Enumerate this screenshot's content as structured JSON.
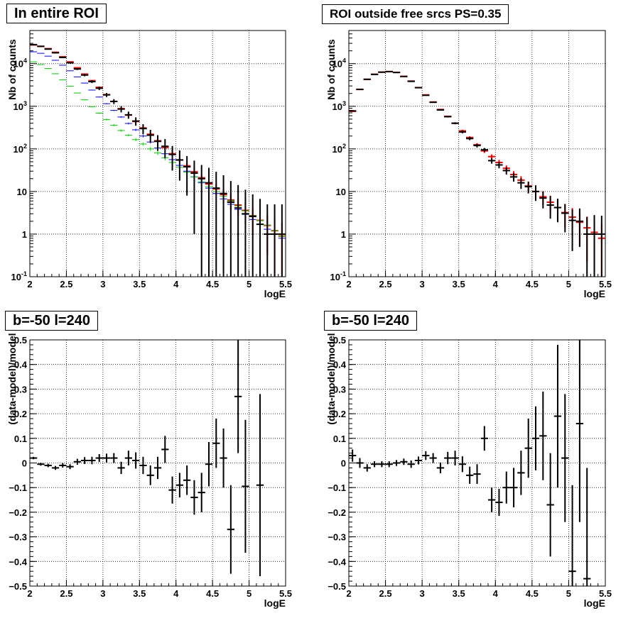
{
  "colors": {
    "data": "#000000",
    "model_total": "#ff0000",
    "model_blue": "#0000ff",
    "model_green": "#00cc00",
    "grid": "#000000"
  },
  "chart_data": [
    {
      "type": "scatter",
      "panel": "top-left",
      "title": "In entire ROI",
      "xlabel": "logE",
      "ylabel": "Nb of counts",
      "xlim": [
        2,
        5.5
      ],
      "ylim": [
        0.1,
        60000
      ],
      "yscale": "log",
      "grid": true,
      "xticks": [
        "2",
        "2.5",
        "3",
        "3.5",
        "4",
        "4.5",
        "5",
        "5.5"
      ],
      "yticks": [
        "10^-1",
        "1",
        "10",
        "10^2",
        "10^3",
        "10^4"
      ],
      "x": [
        2.05,
        2.15,
        2.25,
        2.35,
        2.45,
        2.55,
        2.65,
        2.75,
        2.85,
        2.95,
        3.05,
        3.15,
        3.25,
        3.35,
        3.45,
        3.55,
        3.65,
        3.75,
        3.85,
        3.95,
        4.05,
        4.15,
        4.25,
        4.35,
        4.45,
        4.55,
        4.65,
        4.75,
        4.85,
        4.95,
        5.05,
        5.15,
        5.25,
        5.35,
        5.45
      ],
      "series": [
        {
          "style": "data",
          "values": [
            28000,
            25500,
            22000,
            18000,
            14000,
            10500,
            7500,
            5400,
            3800,
            2650,
            1850,
            1300,
            860,
            630,
            450,
            300,
            210,
            150,
            115,
            74,
            55,
            38,
            27,
            20,
            16,
            12,
            9,
            5.6,
            4.1,
            3.0,
            2.6,
            1.7,
            1,
            1,
            1
          ]
        },
        {
          "style": "model_total",
          "values": [
            27500,
            25500,
            22500,
            18500,
            14500,
            11000,
            8000,
            5700,
            4000,
            2780,
            1880,
            1300,
            880,
            620,
            440,
            310,
            220,
            155,
            108,
            77,
            55,
            40,
            29,
            21,
            15,
            11.5,
            8.5,
            6.3,
            4.8,
            3.6,
            2.7,
            2.1,
            1.6,
            1.2,
            0.9
          ]
        },
        {
          "style": "model_blue",
          "values": [
            19000,
            17500,
            15000,
            12000,
            9200,
            6800,
            4900,
            3500,
            2400,
            1650,
            1150,
            800,
            560,
            395,
            280,
            200,
            145,
            105,
            77,
            56,
            41,
            30,
            22,
            16,
            12,
            9,
            6.7,
            5,
            3.8,
            2.9,
            2.2,
            1.7,
            1.3,
            1,
            0.8
          ]
        },
        {
          "style": "model_green",
          "values": [
            11000,
            9500,
            7700,
            5800,
            4200,
            2950,
            2050,
            1420,
            980,
            690,
            490,
            360,
            270,
            210,
            165,
            130,
            100,
            80,
            62,
            48,
            37,
            28.5,
            22,
            17,
            13,
            10,
            7.8,
            6,
            4.6,
            3.5,
            2.7,
            2.1,
            1.6,
            1.2,
            0.9
          ]
        }
      ],
      "data_err_hi": [
        800,
        760,
        700,
        640,
        560,
        480,
        410,
        350,
        290,
        240,
        200,
        170,
        140,
        120,
        100,
        80,
        70,
        60,
        55,
        43,
        37,
        30,
        26,
        22,
        20,
        17,
        15,
        12,
        10,
        8,
        6,
        5,
        4,
        4,
        4
      ],
      "data_err_lo": [
        800,
        760,
        700,
        640,
        560,
        480,
        410,
        350,
        290,
        240,
        200,
        170,
        140,
        120,
        100,
        80,
        70,
        60,
        55,
        43,
        37,
        30,
        26,
        22,
        19,
        15,
        12,
        9,
        6.5,
        5,
        4,
        2.5,
        1,
        1,
        1
      ]
    },
    {
      "type": "scatter",
      "panel": "top-right",
      "title": "ROI outside free srcs PS=0.35",
      "xlabel": "logE",
      "ylabel": "Nb of counts",
      "xlim": [
        2,
        5.5
      ],
      "ylim": [
        0.1,
        60000
      ],
      "yscale": "log",
      "grid": true,
      "xticks": [
        "2",
        "2.5",
        "3",
        "3.5",
        "4",
        "4.5",
        "5",
        "5.5"
      ],
      "yticks": [
        "10^-1",
        "1",
        "10",
        "10^2",
        "10^3",
        "10^4"
      ],
      "x": [
        2.05,
        2.15,
        2.25,
        2.35,
        2.45,
        2.55,
        2.65,
        2.75,
        2.85,
        2.95,
        3.05,
        3.15,
        3.25,
        3.35,
        3.45,
        3.55,
        3.65,
        3.75,
        3.85,
        3.95,
        4.05,
        4.15,
        4.25,
        4.35,
        4.45,
        4.55,
        4.65,
        4.75,
        4.85,
        4.95,
        5.05,
        5.15,
        5.25,
        5.35,
        5.45
      ],
      "series": [
        {
          "style": "data",
          "values": [
            780,
            2500,
            4300,
            5600,
            6300,
            6500,
            6200,
            5000,
            3850,
            2730,
            1810,
            1240,
            820,
            570,
            400,
            250,
            175,
            120,
            95,
            53,
            42,
            31,
            22,
            16,
            13,
            10,
            7,
            4.8,
            4.2,
            3.1,
            2.1,
            2.0,
            1,
            1,
            1
          ]
        },
        {
          "style": "model_total",
          "values": [
            760,
            2480,
            4280,
            5650,
            6350,
            6550,
            6250,
            5050,
            3900,
            2750,
            1850,
            1260,
            840,
            580,
            400,
            265,
            185,
            125,
            90,
            66,
            48,
            35,
            25,
            18.5,
            13.5,
            10,
            7.5,
            5.6,
            4.2,
            3.2,
            2.5,
            1.9,
            1.4,
            1.1,
            0.8
          ]
        }
      ],
      "data_err_hi": [
        30,
        55,
        70,
        80,
        85,
        85,
        85,
        75,
        65,
        55,
        45,
        38,
        30,
        25,
        22,
        18,
        15,
        12,
        10,
        8,
        7,
        6,
        5,
        4.5,
        4,
        4,
        3,
        3,
        2.6,
        2,
        1.7,
        2,
        1.5,
        1.8,
        1.7
      ],
      "data_err_lo": [
        30,
        55,
        70,
        80,
        85,
        85,
        85,
        75,
        65,
        55,
        45,
        38,
        30,
        25,
        22,
        18,
        15,
        12,
        10,
        8,
        7,
        6,
        5,
        4.5,
        4,
        4,
        3,
        2.5,
        2.3,
        2,
        1.7,
        1.5,
        1,
        1,
        1
      ]
    },
    {
      "type": "scatter",
      "panel": "bottom-left",
      "title": "b=-50 l=240",
      "xlabel": "logE",
      "ylabel": "(data-model)/model",
      "xlim": [
        2,
        5.5
      ],
      "ylim": [
        -0.5,
        0.5
      ],
      "grid": true,
      "xticks": [
        "2",
        "2.5",
        "3",
        "3.5",
        "4",
        "4.5",
        "5",
        "5.5"
      ],
      "yticks": [
        "-0.5",
        "-0.4",
        "-0.3",
        "-0.2",
        "-0.1",
        "0",
        "0.1",
        "0.2",
        "0.3",
        "0.4",
        "0.5"
      ],
      "x": [
        2.05,
        2.15,
        2.25,
        2.35,
        2.45,
        2.55,
        2.65,
        2.75,
        2.85,
        2.95,
        3.05,
        3.15,
        3.25,
        3.35,
        3.45,
        3.55,
        3.65,
        3.75,
        3.85,
        3.95,
        4.05,
        4.15,
        4.25,
        4.35,
        4.45,
        4.55,
        4.65,
        4.75,
        4.85,
        4.95,
        5.15
      ],
      "values": [
        0.02,
        -0.005,
        -0.01,
        -0.02,
        -0.01,
        -0.015,
        0.005,
        0.01,
        0.01,
        0.02,
        0.02,
        0.02,
        -0.02,
        0.02,
        0.01,
        -0.01,
        -0.05,
        -0.02,
        0.055,
        -0.11,
        -0.09,
        -0.07,
        -0.14,
        -0.12,
        -0.005,
        0.08,
        0.02,
        -0.27,
        0.27,
        -0.095,
        -0.09
      ],
      "errors": [
        0.005,
        0.006,
        0.007,
        0.008,
        0.009,
        0.01,
        0.012,
        0.014,
        0.015,
        0.016,
        0.018,
        0.02,
        0.025,
        0.03,
        0.033,
        0.035,
        0.04,
        0.045,
        0.055,
        0.055,
        0.05,
        0.06,
        0.07,
        0.08,
        0.09,
        0.1,
        0.12,
        0.18,
        0.23,
        0.27,
        0.37
      ]
    },
    {
      "type": "scatter",
      "panel": "bottom-right",
      "title": "b=-50 l=240",
      "xlabel": "logE",
      "ylabel": "(data-model)/model",
      "xlim": [
        2,
        5.5
      ],
      "ylim": [
        -0.5,
        0.5
      ],
      "grid": true,
      "xticks": [
        "2",
        "2.5",
        "3",
        "3.5",
        "4",
        "4.5",
        "5",
        "5.5"
      ],
      "yticks": [
        "-0.5",
        "-0.4",
        "-0.3",
        "-0.2",
        "-0.1",
        "0",
        "0.1",
        "0.2",
        "0.3",
        "0.4",
        "0.5"
      ],
      "x": [
        2.05,
        2.15,
        2.25,
        2.35,
        2.45,
        2.55,
        2.65,
        2.75,
        2.85,
        2.95,
        3.05,
        3.15,
        3.25,
        3.35,
        3.45,
        3.55,
        3.65,
        3.75,
        3.85,
        3.95,
        4.05,
        4.15,
        4.25,
        4.35,
        4.45,
        4.55,
        4.65,
        4.75,
        4.85,
        4.95,
        5.05,
        5.15,
        5.25
      ],
      "values": [
        0.03,
        0.0,
        -0.02,
        -0.005,
        -0.005,
        -0.005,
        0.0,
        0.005,
        -0.005,
        0.01,
        0.03,
        0.02,
        -0.02,
        0.02,
        0.02,
        -0.005,
        -0.05,
        -0.045,
        0.1,
        -0.15,
        -0.16,
        -0.1,
        -0.1,
        -0.04,
        0.06,
        0.1,
        0.11,
        -0.17,
        0.19,
        0.02,
        -0.44,
        0.16,
        -0.47
      ],
      "errors": [
        0.025,
        0.02,
        0.015,
        0.012,
        0.012,
        0.012,
        0.012,
        0.013,
        0.015,
        0.016,
        0.018,
        0.02,
        0.022,
        0.025,
        0.03,
        0.032,
        0.035,
        0.04,
        0.05,
        0.05,
        0.055,
        0.065,
        0.08,
        0.09,
        0.12,
        0.13,
        0.18,
        0.21,
        0.29,
        0.26,
        0.35,
        0.4,
        0.45
      ]
    }
  ]
}
